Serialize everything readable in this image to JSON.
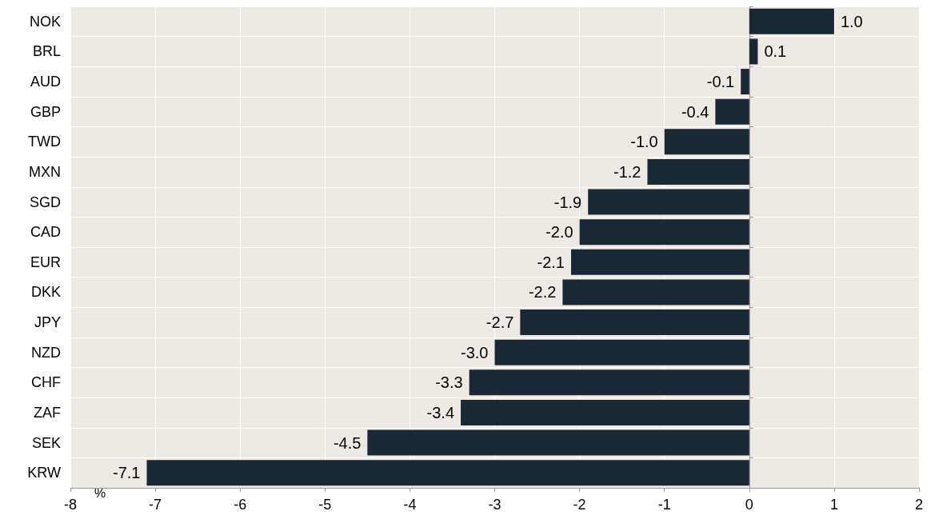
{
  "chart_data": {
    "type": "bar",
    "orientation": "horizontal",
    "categories": [
      "NOK",
      "BRL",
      "AUD",
      "GBP",
      "TWD",
      "MXN",
      "SGD",
      "CAD",
      "EUR",
      "DKK",
      "JPY",
      "NZD",
      "CHF",
      "ZAF",
      "SEK",
      "KRW"
    ],
    "values": [
      1.0,
      0.1,
      -0.1,
      -0.4,
      -1.0,
      -1.2,
      -1.9,
      -2.0,
      -2.1,
      -2.2,
      -2.7,
      -3.0,
      -3.3,
      -3.4,
      -4.5,
      -7.1
    ],
    "color": "#1a2734",
    "xlim": [
      -8,
      2
    ],
    "xticks": [
      -8,
      -7,
      -6,
      -5,
      -4,
      -3,
      -2,
      -1,
      0,
      1,
      2
    ],
    "value_labels": [
      "1.0",
      "0.1",
      "-0.1",
      "-0.4",
      "-1.0",
      "-1.2",
      "-1.9",
      "-2.0",
      "-2.1",
      "-2.2",
      "-2.7",
      "-3.0",
      "-3.3",
      "-3.4",
      "-4.5",
      "-7.1"
    ],
    "grid": true,
    "annotations": [
      "%"
    ]
  }
}
